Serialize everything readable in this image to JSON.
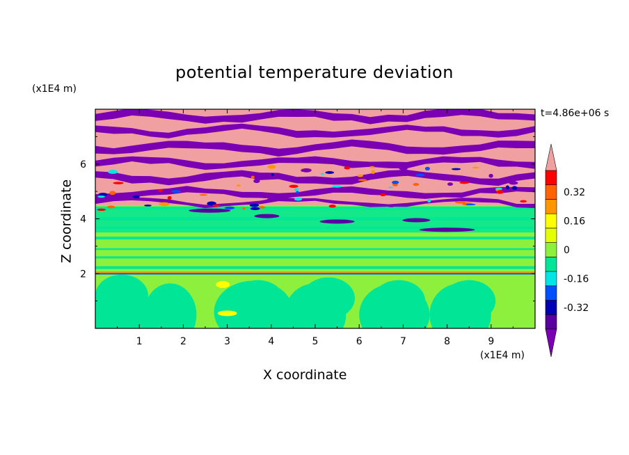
{
  "chart_data": {
    "type": "heatmap",
    "title": "potential temperature deviation",
    "xlabel": "X coordinate",
    "ylabel": "Z coordinate",
    "x_unit": "(x1E4 m)",
    "z_unit": "(x1E4 m)",
    "time_label": "t=4.86e+06 s",
    "xlim": [
      0,
      10
    ],
    "ylim": [
      0,
      8
    ],
    "x_ticks": [
      "1",
      "2",
      "3",
      "4",
      "5",
      "6",
      "7",
      "8",
      "9"
    ],
    "y_ticks": [
      "2",
      "4",
      "6"
    ],
    "colorbar": {
      "levels": [
        -0.48,
        -0.4,
        -0.32,
        -0.24,
        -0.16,
        -0.08,
        0,
        0.08,
        0.16,
        0.24,
        0.32,
        0.4,
        0.48
      ],
      "tick_labels": [
        "0.32",
        "0.16",
        "0",
        "-0.16",
        "-0.32"
      ],
      "colors": [
        "#7b00b4",
        "#5a00a0",
        "#0000b4",
        "#0050ff",
        "#00e6e6",
        "#00e696",
        "#8cf03c",
        "#e6ff00",
        "#ffff00",
        "#ff9600",
        "#ff6400",
        "#ff0000",
        "#f0a0a0"
      ]
    },
    "layers": [
      {
        "z_range": [
          0,
          2
        ],
        "description_values": [
          0,
          0.08
        ]
      },
      {
        "z_range": [
          2,
          4.5
        ],
        "description_values": [
          0,
          0.08
        ]
      },
      {
        "z_range": [
          4.5,
          8
        ],
        "description_values": [
          -0.48,
          0.48
        ]
      }
    ]
  }
}
